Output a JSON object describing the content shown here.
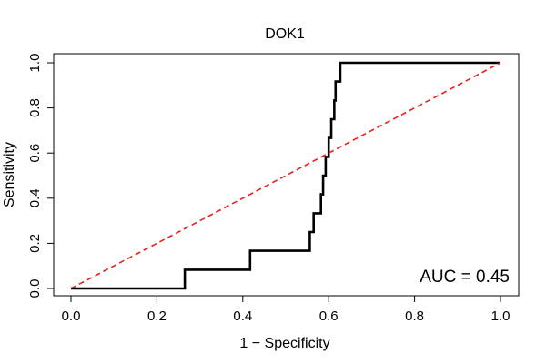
{
  "chart_data": {
    "type": "line",
    "title": "DOK1",
    "xlabel": "1 − Specificity",
    "ylabel": "Sensitivity",
    "xlim": [
      0,
      1
    ],
    "ylim": [
      0,
      1
    ],
    "x_ticks": [
      0.0,
      0.2,
      0.4,
      0.6,
      0.8,
      1.0
    ],
    "x_tick_labels": [
      "0.0",
      "0.2",
      "0.4",
      "0.6",
      "0.8",
      "1.0"
    ],
    "y_ticks": [
      0.0,
      0.2,
      0.4,
      0.6,
      0.8,
      1.0
    ],
    "y_tick_labels": [
      "0.0",
      "0.2",
      "0.4",
      "0.6",
      "0.8",
      "1.0"
    ],
    "grid": false,
    "series": [
      {
        "name": "ROC curve",
        "color": "#000000",
        "style": "solid",
        "points": [
          [
            0.0,
            0.0
          ],
          [
            0.265,
            0.0
          ],
          [
            0.265,
            0.083
          ],
          [
            0.417,
            0.083
          ],
          [
            0.417,
            0.167
          ],
          [
            0.556,
            0.167
          ],
          [
            0.556,
            0.25
          ],
          [
            0.565,
            0.25
          ],
          [
            0.565,
            0.333
          ],
          [
            0.582,
            0.333
          ],
          [
            0.582,
            0.417
          ],
          [
            0.587,
            0.417
          ],
          [
            0.587,
            0.5
          ],
          [
            0.593,
            0.5
          ],
          [
            0.593,
            0.583
          ],
          [
            0.6,
            0.583
          ],
          [
            0.6,
            0.667
          ],
          [
            0.606,
            0.667
          ],
          [
            0.606,
            0.75
          ],
          [
            0.613,
            0.75
          ],
          [
            0.613,
            0.833
          ],
          [
            0.616,
            0.833
          ],
          [
            0.616,
            0.917
          ],
          [
            0.627,
            0.917
          ],
          [
            0.627,
            1.0
          ],
          [
            1.0,
            1.0
          ]
        ]
      },
      {
        "name": "Chance line",
        "color": "#e8201a",
        "style": "dashed",
        "points": [
          [
            0.0,
            0.0
          ],
          [
            1.0,
            1.0
          ]
        ]
      }
    ],
    "annotations": [
      {
        "text": "AUC = 0.45",
        "position": "bottom-right"
      }
    ]
  }
}
